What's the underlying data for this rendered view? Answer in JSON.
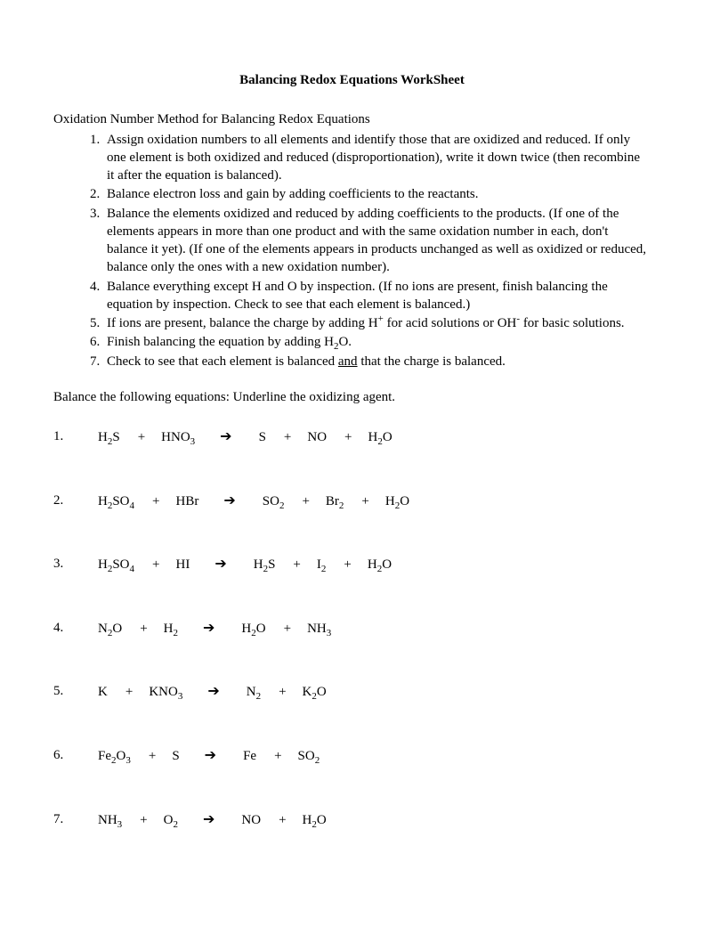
{
  "title": "Balancing Redox Equations WorkSheet",
  "intro": "Oxidation Number Method for Balancing Redox Equations",
  "steps": [
    "Assign oxidation numbers to all elements and identify those that are oxidized and reduced.  If only one element is both oxidized and reduced (disproportionation), write it down twice (then recombine it after the equation is balanced).",
    "Balance electron loss and gain by adding coefficients to the reactants.",
    "Balance the elements oxidized and reduced by adding coefficients to the products.  (If one of the elements appears in more than one product and with the same oxidation number in each, don't balance it yet).  (If one of the elements appears in products unchanged as well as oxidized or reduced, balance only the ones with a new oxidation number).",
    "Balance everything except H and O by inspection.  (If no ions are present, finish balancing the equation by inspection.  Check to see that each element is balanced.)",
    "__HTML__If ions are present, balance the charge by adding H<sup>+</sup> for acid solutions or OH<sup>-</sup> for basic solutions.",
    "__HTML__Finish balancing the equation by adding H<sub>2</sub>O.",
    "__HTML__Check to see that each element is balanced <span class=\"underline\">and</span> that the charge is balanced."
  ],
  "instructions": "Balance the following equations:  Underline the oxidizing agent.",
  "problems": [
    {
      "num": "1.",
      "reactants": [
        "H<sub>2</sub>S",
        "HNO<sub>3</sub>"
      ],
      "products": [
        "S",
        "NO",
        "H<sub>2</sub>O"
      ]
    },
    {
      "num": "2.",
      "reactants": [
        "H<sub>2</sub>SO<sub>4</sub>",
        "HBr"
      ],
      "products": [
        "SO<sub>2</sub>",
        "Br<sub>2</sub>",
        "H<sub>2</sub>O"
      ]
    },
    {
      "num": "3.",
      "reactants": [
        "H<sub>2</sub>SO<sub>4</sub>",
        "HI"
      ],
      "products": [
        "H<sub>2</sub>S",
        "I<sub>2</sub>",
        "H<sub>2</sub>O"
      ]
    },
    {
      "num": "4.",
      "reactants": [
        "N<sub>2</sub>O",
        "H<sub>2</sub>"
      ],
      "products": [
        "H<sub>2</sub>O",
        "NH<sub>3</sub>"
      ]
    },
    {
      "num": "5.",
      "reactants": [
        "K",
        "KNO<sub>3</sub>"
      ],
      "products": [
        "N<sub>2</sub>",
        "K<sub>2</sub>O"
      ]
    },
    {
      "num": "6.",
      "reactants": [
        "Fe<sub>2</sub>O<sub>3</sub>",
        "S"
      ],
      "products": [
        "Fe",
        "SO<sub>2</sub>"
      ]
    },
    {
      "num": "7.",
      "reactants": [
        "NH<sub>3</sub>",
        "O<sub>2</sub>"
      ],
      "products": [
        "NO",
        "H<sub>2</sub>O"
      ]
    }
  ],
  "arrow_glyph": "➔",
  "plus_glyph": "+"
}
